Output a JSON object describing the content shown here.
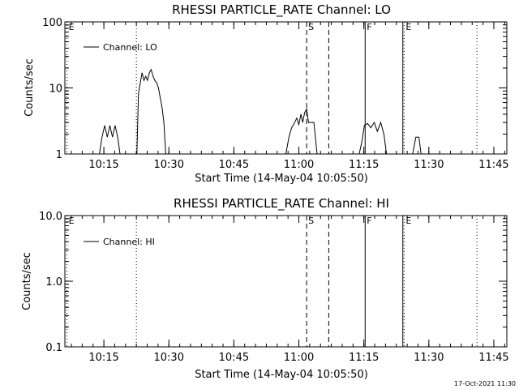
{
  "footer": {
    "timestamp": "17-Oct-2021 11:30"
  },
  "chart_data": [
    {
      "type": "line",
      "title": "RHESSI PARTICLE_RATE Channel: LO",
      "xlabel": "Start Time (14-May-04 10:05:50)",
      "ylabel": "Counts/sec",
      "yscale": "log",
      "ylim": [
        1,
        100
      ],
      "xlim": [
        10.1,
        11.8
      ],
      "x_unit": "hours (UT)",
      "x_ticks": [
        10.25,
        10.5,
        10.75,
        11.0,
        11.25,
        11.5,
        11.75
      ],
      "x_tick_labels": [
        "10:15",
        "10:30",
        "10:45",
        "11:00",
        "11:15",
        "11:30",
        "11:45"
      ],
      "y_ticks": [
        1,
        10,
        100
      ],
      "y_tick_labels": [
        "1",
        "10",
        "100"
      ],
      "legend": {
        "placement": "top-left",
        "entries": [
          "Channel: LO"
        ]
      },
      "markers": [
        {
          "x": 10.108,
          "label": "E",
          "style": "dotted"
        },
        {
          "x": 10.375,
          "label": "",
          "style": "dotted"
        },
        {
          "x": 11.03,
          "label": "S",
          "style": "dashed"
        },
        {
          "x": 11.115,
          "label": "",
          "style": "dashed"
        },
        {
          "x": 11.255,
          "label": "F",
          "style": "solid"
        },
        {
          "x": 11.4,
          "label": "",
          "style": "solid"
        },
        {
          "x": 11.405,
          "label": "E",
          "style": "dotted"
        },
        {
          "x": 11.685,
          "label": "",
          "style": "dotted"
        }
      ],
      "series": [
        {
          "name": "Channel: LO",
          "segments": [
            [
              [
                10.233,
                1
              ],
              [
                10.243,
                1.8
              ],
              [
                10.253,
                2.7
              ],
              [
                10.263,
                1.8
              ],
              [
                10.273,
                2.7
              ],
              [
                10.283,
                1.8
              ],
              [
                10.293,
                2.7
              ],
              [
                10.303,
                1.8
              ],
              [
                10.312,
                1
              ]
            ],
            [
              [
                10.377,
                1
              ],
              [
                10.383,
                8
              ],
              [
                10.39,
                12
              ],
              [
                10.397,
                17
              ],
              [
                10.404,
                13
              ],
              [
                10.411,
                15
              ],
              [
                10.418,
                13
              ],
              [
                10.425,
                17
              ],
              [
                10.432,
                19
              ],
              [
                10.439,
                15
              ],
              [
                10.446,
                13
              ],
              [
                10.453,
                12
              ],
              [
                10.46,
                10
              ],
              [
                10.467,
                7
              ],
              [
                10.474,
                5
              ],
              [
                10.481,
                3
              ],
              [
                10.488,
                1
              ]
            ],
            [
              [
                10.95,
                1
              ],
              [
                10.962,
                1.8
              ],
              [
                10.972,
                2.5
              ],
              [
                10.982,
                2.9
              ],
              [
                10.992,
                3.5
              ],
              [
                11.0,
                2.8
              ],
              [
                11.008,
                4.0
              ],
              [
                11.015,
                3.0
              ],
              [
                11.022,
                4.2
              ],
              [
                11.03,
                4.8
              ],
              [
                11.037,
                3.0
              ],
              [
                11.047,
                3.0
              ],
              [
                11.058,
                3.0
              ],
              [
                11.07,
                1
              ]
            ],
            [
              [
                11.232,
                1
              ],
              [
                11.242,
                1.5
              ],
              [
                11.252,
                2.7
              ],
              [
                11.264,
                2.9
              ],
              [
                11.277,
                2.5
              ],
              [
                11.29,
                3.0
              ],
              [
                11.302,
                2.2
              ],
              [
                11.315,
                3.0
              ],
              [
                11.327,
                2.0
              ],
              [
                11.337,
                1
              ]
            ],
            [
              [
                11.438,
                1
              ],
              [
                11.45,
                1.8
              ],
              [
                11.462,
                1.8
              ],
              [
                11.47,
                1
              ]
            ]
          ]
        }
      ]
    },
    {
      "type": "line",
      "title": "RHESSI PARTICLE_RATE Channel: HI",
      "xlabel": "Start Time (14-May-04 10:05:50)",
      "ylabel": "Counts/sec",
      "yscale": "log",
      "ylim": [
        0.1,
        10.0
      ],
      "xlim": [
        10.1,
        11.8
      ],
      "x_unit": "hours (UT)",
      "x_ticks": [
        10.25,
        10.5,
        10.75,
        11.0,
        11.25,
        11.5,
        11.75
      ],
      "x_tick_labels": [
        "10:15",
        "10:30",
        "10:45",
        "11:00",
        "11:15",
        "11:30",
        "11:45"
      ],
      "y_ticks": [
        0.1,
        1.0,
        10.0
      ],
      "y_tick_labels": [
        "0.1",
        "1.0",
        "10.0"
      ],
      "legend": {
        "placement": "top-left",
        "entries": [
          "Channel: HI"
        ]
      },
      "markers": [
        {
          "x": 10.108,
          "label": "E",
          "style": "dotted"
        },
        {
          "x": 10.375,
          "label": "",
          "style": "dotted"
        },
        {
          "x": 11.03,
          "label": "S",
          "style": "dashed"
        },
        {
          "x": 11.115,
          "label": "",
          "style": "dashed"
        },
        {
          "x": 11.255,
          "label": "F",
          "style": "solid"
        },
        {
          "x": 11.4,
          "label": "",
          "style": "solid"
        },
        {
          "x": 11.405,
          "label": "E",
          "style": "dotted"
        },
        {
          "x": 11.685,
          "label": "",
          "style": "dotted"
        }
      ],
      "series": [
        {
          "name": "Channel: HI",
          "segments": []
        }
      ]
    }
  ]
}
